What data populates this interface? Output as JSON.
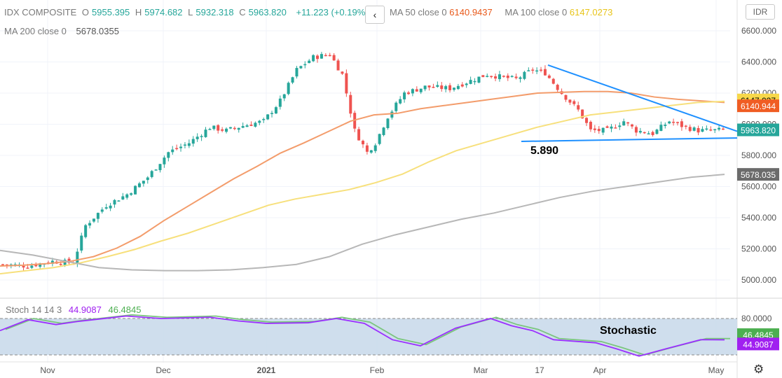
{
  "header": {
    "symbol": "IDX COMPOSITE",
    "open_label": "O",
    "open": "5955.395",
    "high_label": "H",
    "high": "5974.682",
    "low_label": "L",
    "low": "5932.318",
    "close_label": "C",
    "close": "5963.820",
    "change": "+11.223 (+0.19%)"
  },
  "indicators": {
    "ma50_label": "MA 50 close 0",
    "ma50_value": "6140.9437",
    "ma100_label": "MA 100 close 0",
    "ma100_value": "6147.0273",
    "ma200_label": "MA 200 close 0",
    "ma200_value": "5678.0355",
    "collapse_icon": "chevron-left-icon"
  },
  "currency": "IDR",
  "stoch": {
    "label": "Stoch 14 14 3",
    "k_value": "44.9087",
    "d_value": "46.4845",
    "annotation": "Stochastic"
  },
  "colors": {
    "up": "#26a69a",
    "down": "#ef5350",
    "ma50": "#f39c6b",
    "ma100": "#f7e07c",
    "ma200": "#b7b7b7",
    "trendline": "#1e90ff",
    "stoch_k": "#9b30ff",
    "stoch_d": "#7bc67e",
    "stoch_band": "#c7d8ea"
  },
  "chart_data": {
    "type": "candlestick",
    "y_axis": {
      "ticks": [
        "6600.000",
        "6400.000",
        "6200.000",
        "6000.000",
        "5800.000",
        "5600.000",
        "5400.000",
        "5200.000",
        "5000.000"
      ],
      "ylim": [
        4880,
        6680
      ]
    },
    "x_axis": {
      "ticks": [
        "Nov",
        "Dec",
        "2021",
        "Feb",
        "Mar",
        "17",
        "Apr",
        "May"
      ]
    },
    "price_badges": [
      {
        "label": "6147.027",
        "value": 6147.027,
        "color": "#f7d84a",
        "text_color": "#000000"
      },
      {
        "label": "6140.944",
        "value": 6140.944,
        "color": "#f05d23",
        "text_color": "#ffffff"
      },
      {
        "label": "5963.820",
        "value": 5963.82,
        "color": "#26a69a",
        "text_color": "#ffffff"
      },
      {
        "label": "5678.035",
        "value": 5678.035,
        "color": "#6b6b6b",
        "text_color": "#ffffff"
      }
    ],
    "stoch_axis": {
      "ticks": [
        "80.0000"
      ],
      "badges": [
        {
          "label": "46.4845",
          "value": 46.4845,
          "color": "#4caf50"
        },
        {
          "label": "44.9087",
          "value": 44.9087,
          "color": "#a020f0"
        }
      ]
    },
    "annotations": [
      {
        "text": "5.890",
        "value": 5890
      }
    ],
    "series": [
      {
        "name": "MA 50",
        "values": [
          5090,
          5095,
          5105,
          5120,
          5150,
          5205,
          5280,
          5380,
          5470,
          5560,
          5650,
          5730,
          5815,
          5880,
          5950,
          6020,
          6060,
          6070,
          6100,
          6120,
          6140,
          6160,
          6180,
          6200,
          6205,
          6210,
          6210,
          6200,
          6175,
          6160,
          6150,
          6140
        ]
      },
      {
        "name": "MA 100",
        "values": [
          5040,
          5060,
          5080,
          5110,
          5150,
          5195,
          5250,
          5300,
          5360,
          5420,
          5480,
          5520,
          5550,
          5580,
          5625,
          5680,
          5760,
          5830,
          5880,
          5930,
          5980,
          6020,
          6060,
          6080,
          6100,
          6120,
          6140,
          6147
        ]
      },
      {
        "name": "MA 200",
        "values": [
          5190,
          5160,
          5120,
          5080,
          5065,
          5060,
          5060,
          5065,
          5080,
          5100,
          5150,
          5230,
          5290,
          5340,
          5390,
          5430,
          5480,
          5530,
          5570,
          5600,
          5630,
          5660,
          5678
        ]
      }
    ],
    "trendlines": [
      {
        "name": "descending resistance",
        "from": [
          "Mar",
          "6380"
        ],
        "to": [
          "May",
          "5960"
        ]
      },
      {
        "name": "horizontal support",
        "from": [
          "Mar",
          "5890"
        ],
        "to": [
          "May",
          "5910"
        ]
      }
    ]
  }
}
